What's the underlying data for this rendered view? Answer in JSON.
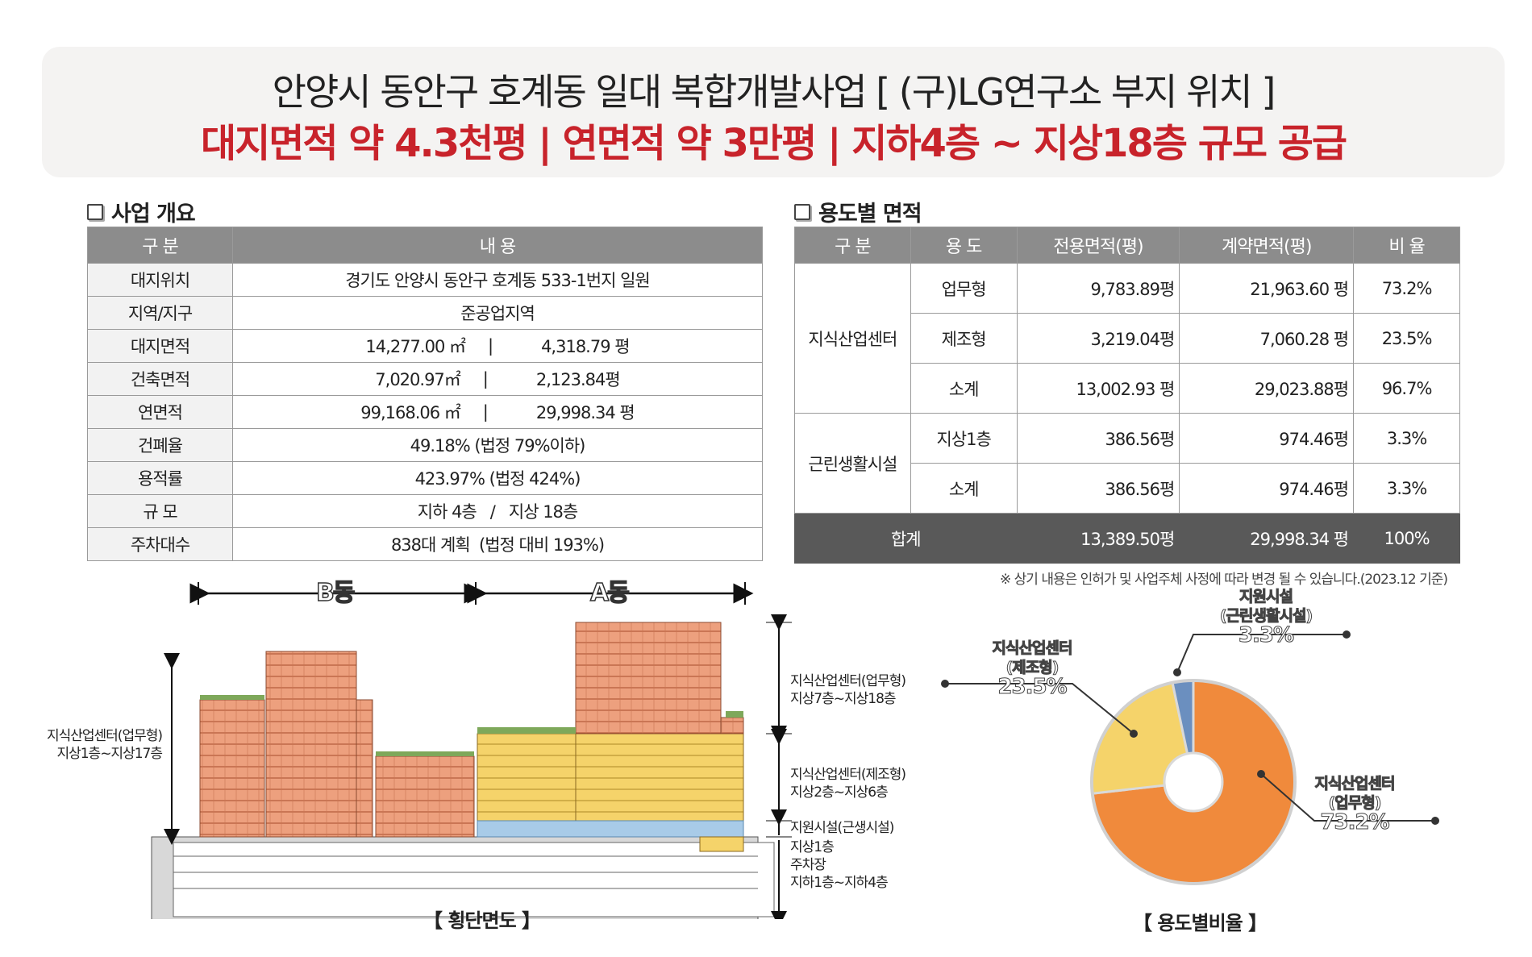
{
  "banner": {
    "line1": "안양시 동안구 호계동 일대 복합개발사업 [ (구)LG연구소 부지 위치 ]",
    "line2": "대지면적 약 4.3천평  |  연면적 약 3만평  |  지하4층 ~ 지상18층 규모 공급"
  },
  "overview": {
    "title": "사업 개요",
    "headers": [
      "구 분",
      "내 용"
    ],
    "rows": [
      {
        "label": "대지위치",
        "value": "경기도 안양시 동안구 호계동 533-1번지 일원"
      },
      {
        "label": "지역/지구",
        "value": "준공업지역"
      },
      {
        "label": "대지면적",
        "v1": "14,277.00 ㎡",
        "v2": "4,318.79 평"
      },
      {
        "label": "건축면적",
        "v1": "7,020.97㎡",
        "v2": "2,123.84평"
      },
      {
        "label": "연면적",
        "v1": "99,168.06 ㎡",
        "v2": "29,998.34 평"
      },
      {
        "label": "건폐율",
        "value": "49.18% (법정 79%이하)"
      },
      {
        "label": "용적률",
        "value": "423.97% (법정 424%)"
      },
      {
        "label": "규 모",
        "value": "지하 4층   /   지상 18층"
      },
      {
        "label": "주차대수",
        "value": "838대 계획  (법정 대비 193%)"
      }
    ]
  },
  "usage": {
    "title": "용도별 면적",
    "headers": [
      "구 분",
      "용 도",
      "전용면적(평)",
      "계약면적(평)",
      "비 율"
    ],
    "groups": [
      {
        "name": "지식산업센터",
        "rows": [
          {
            "use": "업무형",
            "exclusive": "9,783.89평",
            "contract": "21,963.60 평",
            "ratio": "73.2%"
          },
          {
            "use": "제조형",
            "exclusive": "3,219.04평",
            "contract": "7,060.28 평",
            "ratio": "23.5%"
          },
          {
            "use": "소계",
            "exclusive": "13,002.93 평",
            "contract": "29,023.88평",
            "ratio": "96.7%"
          }
        ]
      },
      {
        "name": "근린생활시설",
        "rows": [
          {
            "use": "지상1층",
            "exclusive": "386.56평",
            "contract": "974.46평",
            "ratio": "3.3%"
          },
          {
            "use": "소계",
            "exclusive": "386.56평",
            "contract": "974.46평",
            "ratio": "3.3%"
          }
        ]
      }
    ],
    "total": {
      "label": "합계",
      "exclusive": "13,389.50평",
      "contract": "29,998.34 평",
      "ratio": "100%"
    },
    "note": "※ 상기 내용은 인허가 및 사업주체 사정에 따라 변경 될 수 있습니다.(2023.12 기준)"
  },
  "section": {
    "wing_b": "B동",
    "wing_a": "A동",
    "left_label_1": "지식산업센터(업무형)",
    "left_label_2": "지상1층~지상17층",
    "r1a": "지식산업센터(업무형)",
    "r1b": "지상7층~지상18층",
    "r2a": "지식산업센터(제조형)",
    "r2b": "지상2층~지상6층",
    "r3": "지원시설(근생시설)",
    "r4a": "지상1층",
    "r4b": "주차장",
    "r4c": "지하1층~지하4층",
    "caption": "【 횡단면도 】"
  },
  "pie": {
    "caption": "【 용도별비율 】",
    "labels": {
      "support_1": "지원시설",
      "support_2": "(근린생활시설)",
      "support_pct": "3.3%",
      "mfg_1": "지식산업센터",
      "mfg_2": "(제조형)",
      "mfg_pct": "23.5%",
      "office_1": "지식산업센터",
      "office_2": "(업무형)",
      "office_pct": "73.2%"
    }
  },
  "chart_data": {
    "type": "pie",
    "title": "",
    "series": [
      {
        "name": "지식산업센터(업무형)",
        "value": 73.2,
        "color": "#f08a3c"
      },
      {
        "name": "지식산업센터(제조형)",
        "value": 23.5,
        "color": "#f5d36a"
      },
      {
        "name": "지원시설(근린생활시설)",
        "value": 3.3,
        "color": "#6b8fbf"
      }
    ]
  }
}
